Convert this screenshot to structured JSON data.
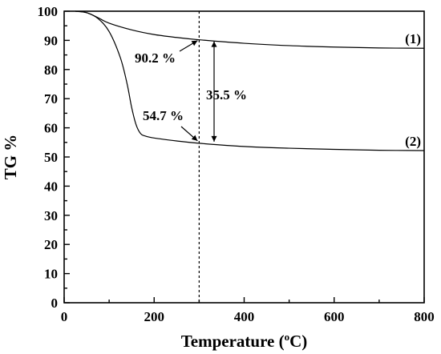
{
  "chart_data": {
    "type": "line",
    "title": "",
    "xlabel": "Temperature (",
    "xlabel_sup": "o",
    "xlabel_tail": "C)",
    "ylabel": "TG %",
    "xlim": [
      0,
      800
    ],
    "ylim": [
      0,
      100
    ],
    "x_ticks": [
      0,
      200,
      400,
      600,
      800
    ],
    "y_ticks": [
      0,
      10,
      20,
      30,
      40,
      50,
      60,
      70,
      80,
      90,
      100
    ],
    "x_tick_labels": [
      "0",
      "200",
      "400",
      "600",
      "800"
    ],
    "y_tick_labels": [
      "0",
      "10",
      "20",
      "30",
      "40",
      "50",
      "60",
      "70",
      "80",
      "90",
      "100"
    ],
    "grid": false,
    "series": [
      {
        "name": "(1)",
        "x": [
          25,
          50,
          75,
          100,
          150,
          200,
          250,
          300,
          400,
          500,
          600,
          700,
          800
        ],
        "y": [
          100,
          99.5,
          97.8,
          95.9,
          93.6,
          92.0,
          91.0,
          90.2,
          89.0,
          88.2,
          87.7,
          87.4,
          87.3
        ]
      },
      {
        "name": "(2)",
        "x": [
          25,
          50,
          75,
          100,
          125,
          140,
          150,
          160,
          170,
          180,
          200,
          250,
          300,
          400,
          500,
          600,
          700,
          800
        ],
        "y": [
          100,
          99.5,
          97.5,
          93.0,
          84.0,
          75.0,
          67.0,
          61.0,
          58.0,
          57.2,
          56.5,
          55.5,
          54.7,
          53.6,
          53.0,
          52.6,
          52.3,
          52.2
        ]
      }
    ],
    "reference_line": {
      "x": 300
    },
    "annotations": [
      {
        "text": "90.2 %",
        "x": 300,
        "y": 90.2
      },
      {
        "text": "54.7 %",
        "x": 300,
        "y": 54.7
      },
      {
        "text": "35.5 %",
        "from": 54.7,
        "to": 90.2
      }
    ]
  }
}
